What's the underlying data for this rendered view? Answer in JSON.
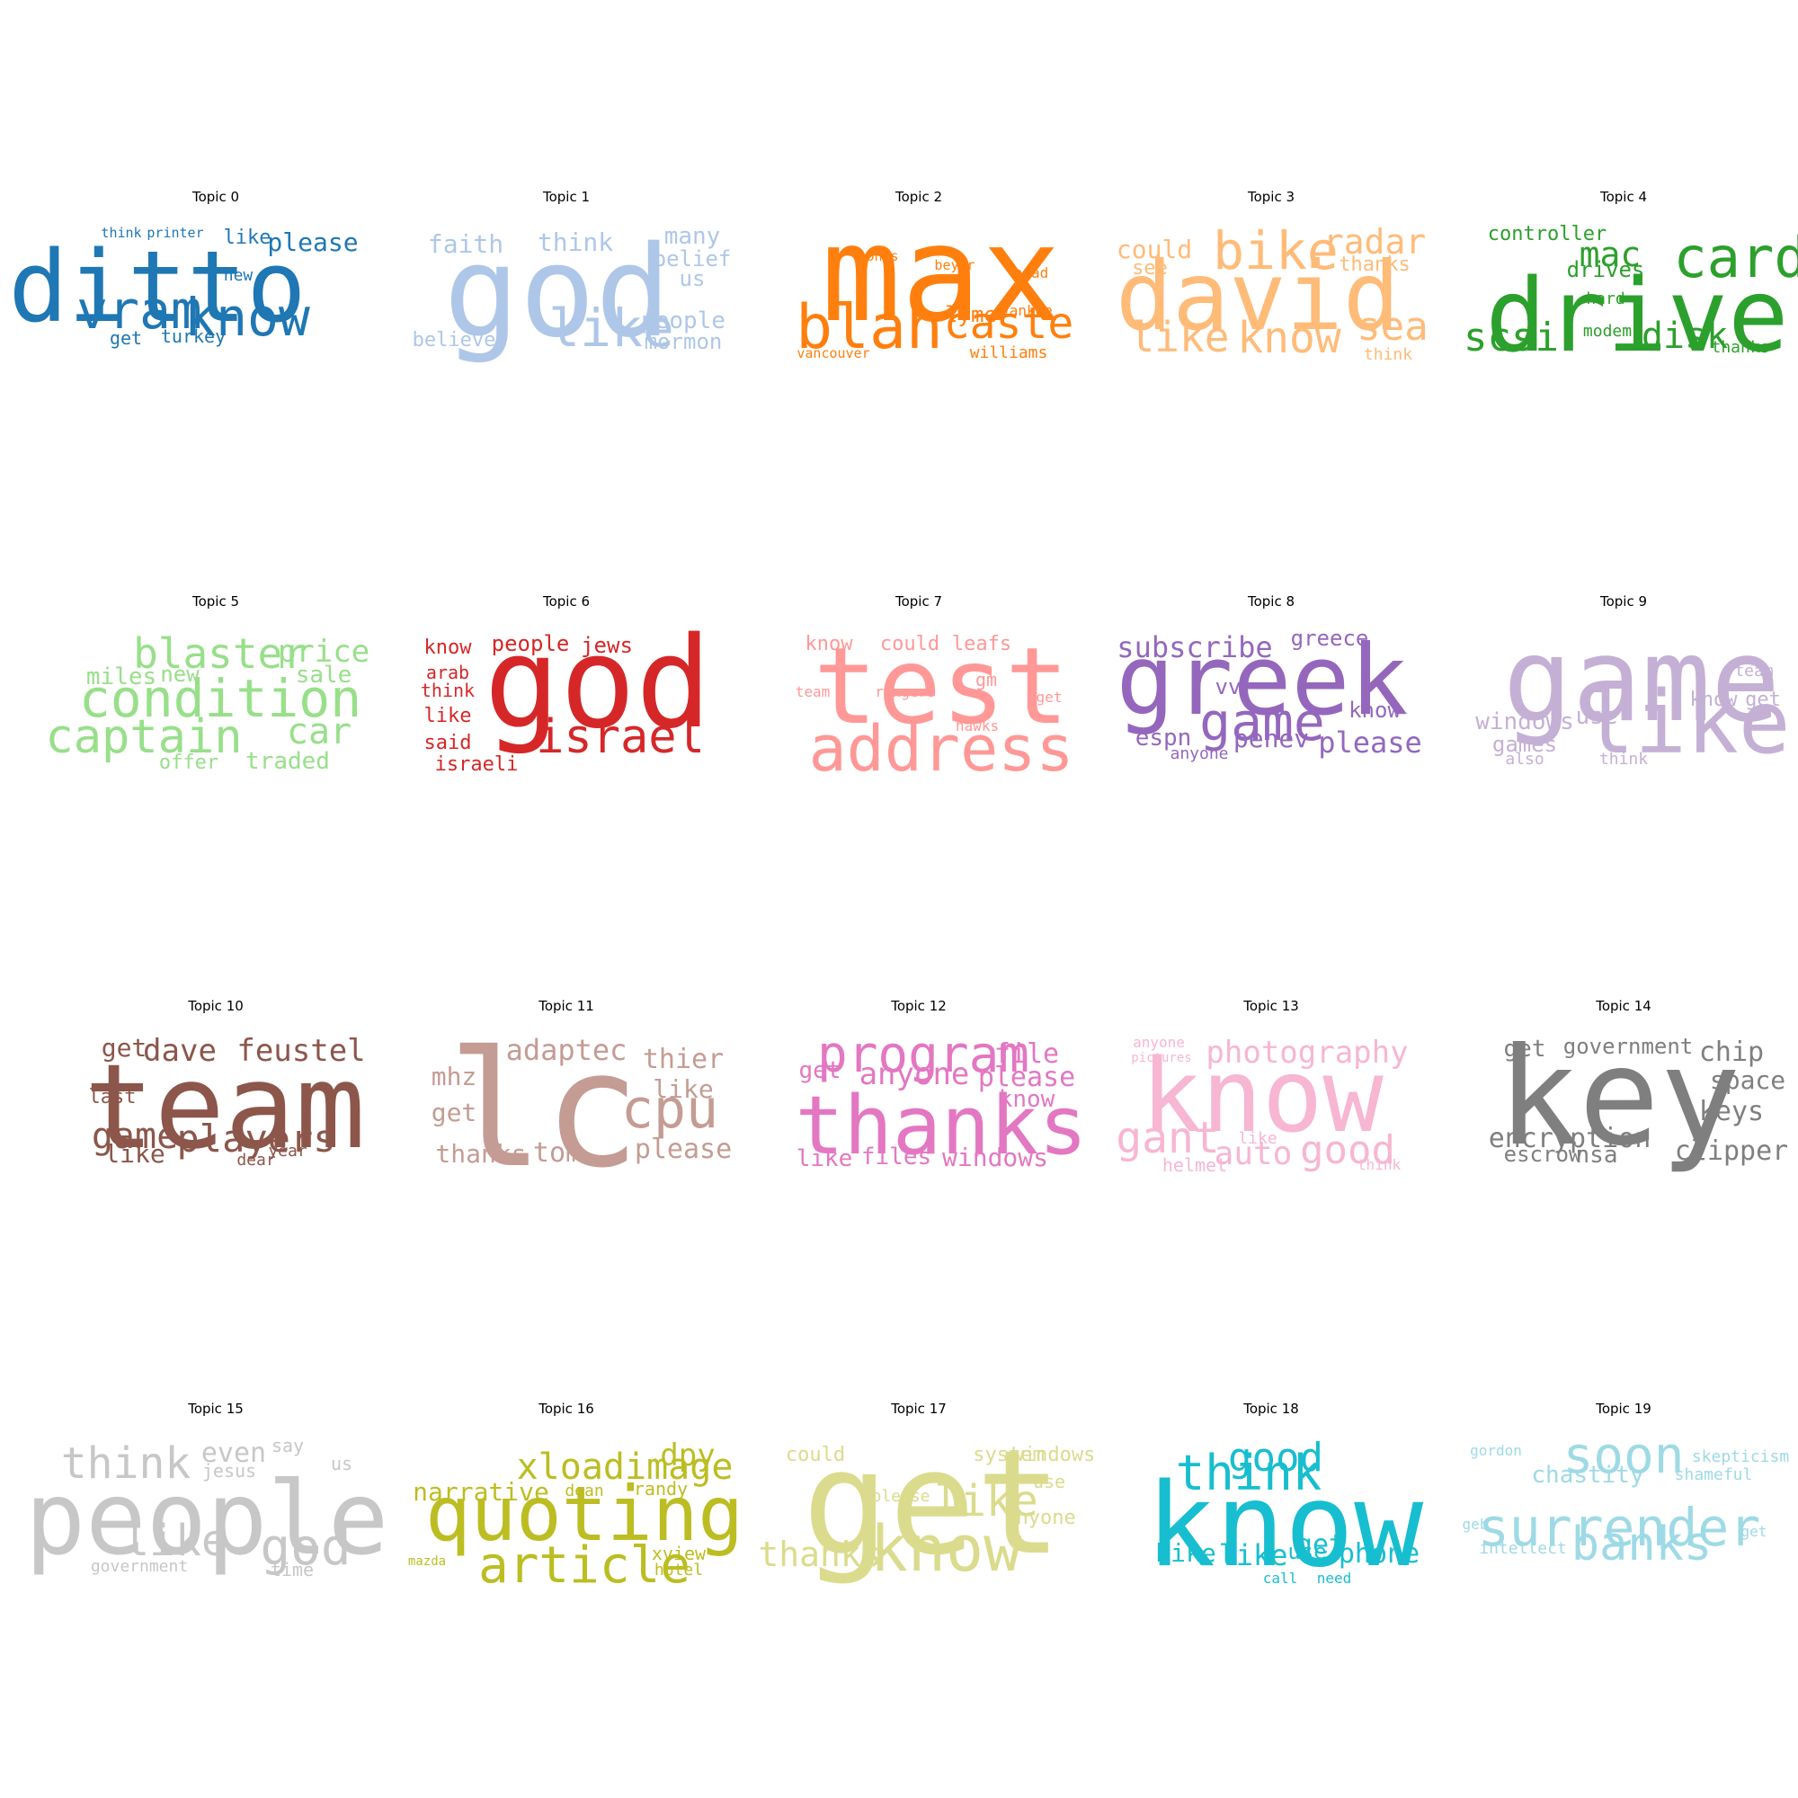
{
  "figure": {
    "panels": [
      {
        "title": "Topic 0",
        "color": "#1f77b4",
        "words": [
          {
            "text": "ditto"
          },
          {
            "text": "vram"
          },
          {
            "text": "know"
          },
          {
            "text": "please"
          },
          {
            "text": "like"
          },
          {
            "text": "new"
          },
          {
            "text": "think"
          },
          {
            "text": "printer"
          },
          {
            "text": "get"
          },
          {
            "text": "turkey"
          }
        ]
      },
      {
        "title": "Topic 1",
        "color": "#aec7e8",
        "words": [
          {
            "text": "god"
          },
          {
            "text": "like"
          },
          {
            "text": "faith"
          },
          {
            "text": "think"
          },
          {
            "text": "many"
          },
          {
            "text": "belief"
          },
          {
            "text": "us"
          },
          {
            "text": "people"
          },
          {
            "text": "mormon"
          },
          {
            "text": "believe"
          }
        ]
      },
      {
        "title": "Topic 2",
        "color": "#ff7f0e",
        "words": [
          {
            "text": "max"
          },
          {
            "text": "blah"
          },
          {
            "text": "caste"
          },
          {
            "text": "bonds"
          },
          {
            "text": "beyer"
          },
          {
            "text": "brad"
          },
          {
            "text": "lyme"
          },
          {
            "text": "yankee"
          },
          {
            "text": "williams"
          },
          {
            "text": "vancouver"
          }
        ]
      },
      {
        "title": "Topic 3",
        "color": "#ffbb78",
        "words": [
          {
            "text": "david"
          },
          {
            "text": "bike"
          },
          {
            "text": "radar"
          },
          {
            "text": "could"
          },
          {
            "text": "see"
          },
          {
            "text": "thanks"
          },
          {
            "text": "like"
          },
          {
            "text": "know"
          },
          {
            "text": "sea"
          },
          {
            "text": "think"
          }
        ]
      },
      {
        "title": "Topic 4",
        "color": "#2ca02c",
        "words": [
          {
            "text": "drive"
          },
          {
            "text": "card"
          },
          {
            "text": "mac"
          },
          {
            "text": "controller"
          },
          {
            "text": "drives"
          },
          {
            "text": "hard"
          },
          {
            "text": "scsi"
          },
          {
            "text": "modem"
          },
          {
            "text": "disk"
          },
          {
            "text": "thanks"
          }
        ]
      },
      {
        "title": "Topic 5",
        "color": "#98df8a",
        "words": [
          {
            "text": "condition"
          },
          {
            "text": "blaster"
          },
          {
            "text": "price"
          },
          {
            "text": "miles"
          },
          {
            "text": "new"
          },
          {
            "text": "sale"
          },
          {
            "text": "captain"
          },
          {
            "text": "car"
          },
          {
            "text": "offer"
          },
          {
            "text": "traded"
          }
        ]
      },
      {
        "title": "Topic 6",
        "color": "#d62728",
        "words": [
          {
            "text": "god"
          },
          {
            "text": "israel"
          },
          {
            "text": "people"
          },
          {
            "text": "jews"
          },
          {
            "text": "know"
          },
          {
            "text": "arab"
          },
          {
            "text": "think"
          },
          {
            "text": "like"
          },
          {
            "text": "said"
          },
          {
            "text": "israeli"
          }
        ]
      },
      {
        "title": "Topic 7",
        "color": "#ff9896",
        "words": [
          {
            "text": "test"
          },
          {
            "text": "address"
          },
          {
            "text": "know"
          },
          {
            "text": "could"
          },
          {
            "text": "leafs"
          },
          {
            "text": "gm"
          },
          {
            "text": "team"
          },
          {
            "text": "rangers"
          },
          {
            "text": "get"
          },
          {
            "text": "hawks"
          }
        ]
      },
      {
        "title": "Topic 8",
        "color": "#9467bd",
        "words": [
          {
            "text": "greek"
          },
          {
            "text": "game"
          },
          {
            "text": "subscribe"
          },
          {
            "text": "greece"
          },
          {
            "text": "vv"
          },
          {
            "text": "know"
          },
          {
            "text": "espn"
          },
          {
            "text": "penev"
          },
          {
            "text": "please"
          },
          {
            "text": "anyone"
          }
        ]
      },
      {
        "title": "Topic 9",
        "color": "#c5b0d5",
        "words": [
          {
            "text": "game"
          },
          {
            "text": "like"
          },
          {
            "text": "team"
          },
          {
            "text": "know"
          },
          {
            "text": "get"
          },
          {
            "text": "windows"
          },
          {
            "text": "use"
          },
          {
            "text": "games"
          },
          {
            "text": "also"
          },
          {
            "text": "think"
          }
        ]
      },
      {
        "title": "Topic 10",
        "color": "#8c564b",
        "words": [
          {
            "text": "team"
          },
          {
            "text": "get"
          },
          {
            "text": "dave"
          },
          {
            "text": "feustel"
          },
          {
            "text": "last"
          },
          {
            "text": "game"
          },
          {
            "text": "players"
          },
          {
            "text": "like"
          },
          {
            "text": "year"
          },
          {
            "text": "dear"
          }
        ]
      },
      {
        "title": "Topic 11",
        "color": "#c49c94",
        "words": [
          {
            "text": "lc"
          },
          {
            "text": "cpu"
          },
          {
            "text": "adaptec"
          },
          {
            "text": "thier"
          },
          {
            "text": "mhz"
          },
          {
            "text": "like"
          },
          {
            "text": "get"
          },
          {
            "text": "thanks"
          },
          {
            "text": "tom"
          },
          {
            "text": "please"
          }
        ]
      },
      {
        "title": "Topic 12",
        "color": "#e377c2",
        "words": [
          {
            "text": "thanks"
          },
          {
            "text": "program"
          },
          {
            "text": "file"
          },
          {
            "text": "get"
          },
          {
            "text": "anyone"
          },
          {
            "text": "please"
          },
          {
            "text": "know"
          },
          {
            "text": "like"
          },
          {
            "text": "files"
          },
          {
            "text": "windows"
          }
        ]
      },
      {
        "title": "Topic 13",
        "color": "#f7b6d2",
        "words": [
          {
            "text": "know"
          },
          {
            "text": "photography"
          },
          {
            "text": "anyone"
          },
          {
            "text": "pictures"
          },
          {
            "text": "gant"
          },
          {
            "text": "like"
          },
          {
            "text": "auto"
          },
          {
            "text": "good"
          },
          {
            "text": "helmet"
          },
          {
            "text": "think"
          }
        ]
      },
      {
        "title": "Topic 14",
        "color": "#7f7f7f",
        "words": [
          {
            "text": "key"
          },
          {
            "text": "get"
          },
          {
            "text": "government"
          },
          {
            "text": "chip"
          },
          {
            "text": "space"
          },
          {
            "text": "keys"
          },
          {
            "text": "encryption"
          },
          {
            "text": "escrow"
          },
          {
            "text": "nsa"
          },
          {
            "text": "clipper"
          }
        ]
      },
      {
        "title": "Topic 15",
        "color": "#c7c7c7",
        "words": [
          {
            "text": "people"
          },
          {
            "text": "think"
          },
          {
            "text": "even"
          },
          {
            "text": "say"
          },
          {
            "text": "us"
          },
          {
            "text": "jesus"
          },
          {
            "text": "like"
          },
          {
            "text": "god"
          },
          {
            "text": "government"
          },
          {
            "text": "time"
          }
        ]
      },
      {
        "title": "Topic 16",
        "color": "#bcbd22",
        "words": [
          {
            "text": "quoting"
          },
          {
            "text": "article"
          },
          {
            "text": "xloadimage"
          },
          {
            "text": "dpy"
          },
          {
            "text": "narrative"
          },
          {
            "text": "dean"
          },
          {
            "text": "randy"
          },
          {
            "text": "mazda"
          },
          {
            "text": "xview"
          },
          {
            "text": "hotel"
          }
        ]
      },
      {
        "title": "Topic 17",
        "color": "#dbdb8d",
        "words": [
          {
            "text": "get"
          },
          {
            "text": "know"
          },
          {
            "text": "could"
          },
          {
            "text": "system"
          },
          {
            "text": "windows"
          },
          {
            "text": "use"
          },
          {
            "text": "like"
          },
          {
            "text": "please"
          },
          {
            "text": "anyone"
          },
          {
            "text": "thanks"
          }
        ]
      },
      {
        "title": "Topic 18",
        "color": "#17becf",
        "words": [
          {
            "text": "know"
          },
          {
            "text": "think"
          },
          {
            "text": "good"
          },
          {
            "text": "bike"
          },
          {
            "text": "use"
          },
          {
            "text": "like"
          },
          {
            "text": "get"
          },
          {
            "text": "phone"
          },
          {
            "text": "call"
          },
          {
            "text": "need"
          }
        ]
      },
      {
        "title": "Topic 19",
        "color": "#9edae5",
        "words": [
          {
            "text": "surrender"
          },
          {
            "text": "soon"
          },
          {
            "text": "gordon"
          },
          {
            "text": "skepticism"
          },
          {
            "text": "chastity"
          },
          {
            "text": "shameful"
          },
          {
            "text": "geb"
          },
          {
            "text": "intellect"
          },
          {
            "text": "banks"
          },
          {
            "text": "get"
          }
        ]
      }
    ]
  }
}
